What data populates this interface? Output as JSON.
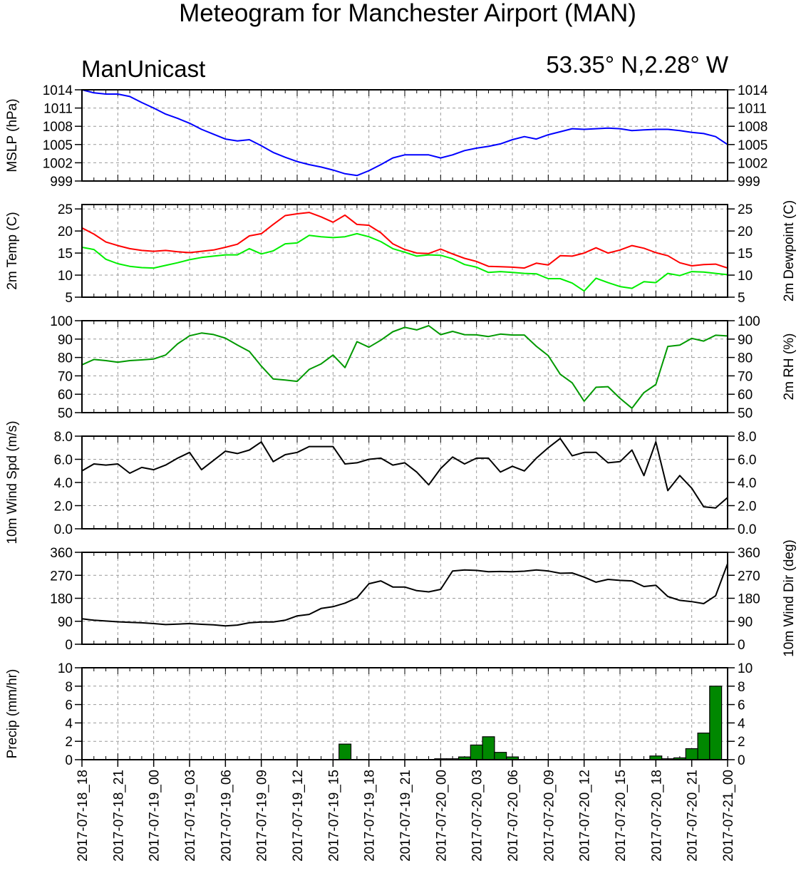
{
  "title": "Meteogram for Manchester Airport (MAN)",
  "subtitle_left": "ManUnicast",
  "subtitle_right": "53.35° N,2.28° W",
  "x_tick_labels": [
    "2017-07-18_18",
    "2017-07-18_21",
    "2017-07-19_00",
    "2017-07-19_03",
    "2017-07-19_06",
    "2017-07-19_09",
    "2017-07-19_12",
    "2017-07-19_15",
    "2017-07-19_18",
    "2017-07-19_21",
    "2017-07-20_00",
    "2017-07-20_03",
    "2017-07-20_06",
    "2017-07-20_09",
    "2017-07-20_12",
    "2017-07-20_15",
    "2017-07-20_18",
    "2017-07-20_21",
    "2017-07-21_00"
  ],
  "colors": {
    "mslp": "#0000ff",
    "temp": "#ff0000",
    "dewpoint": "#00ee00",
    "rh": "#009900",
    "wind": "#000000",
    "precip_fill": "#008800",
    "grid": "#999999"
  },
  "chart_data": [
    {
      "type": "line",
      "ylabel_left": "MSLP (hPa)",
      "ylim": [
        999,
        1014
      ],
      "yticks": [
        999,
        1002,
        1005,
        1008,
        1011,
        1014
      ],
      "ytick_labels": [
        "999",
        "1002",
        "1005",
        "1008",
        "1011",
        "1014"
      ],
      "right_ticks": true,
      "grid": true,
      "x_hours": [
        0,
        1,
        2,
        3,
        4,
        5,
        6,
        7,
        8,
        9,
        10,
        11,
        12,
        13,
        14,
        15,
        16,
        17,
        18,
        19,
        20,
        21,
        22,
        23,
        24,
        25,
        26,
        27,
        28,
        29,
        30,
        31,
        32,
        33,
        34,
        35,
        36,
        37,
        38,
        39,
        40,
        41,
        42,
        43,
        44,
        45,
        46,
        47,
        48,
        49,
        50,
        51,
        52,
        53,
        54
      ],
      "series": [
        {
          "color_key": "mslp",
          "values": [
            1014.0,
            1013.5,
            1013.3,
            1013.3,
            1012.9,
            1011.9,
            1011.0,
            1010.0,
            1009.3,
            1008.5,
            1007.5,
            1006.7,
            1005.9,
            1005.6,
            1005.8,
            1004.8,
            1003.7,
            1002.9,
            1002.2,
            1001.7,
            1001.3,
            1000.8,
            1000.2,
            999.9,
            1000.7,
            1001.7,
            1002.8,
            1003.3,
            1003.3,
            1003.3,
            1002.8,
            1003.3,
            1004.0,
            1004.4,
            1004.7,
            1005.1,
            1005.8,
            1006.3,
            1005.9,
            1006.6,
            1007.1,
            1007.6,
            1007.5,
            1007.6,
            1007.7,
            1007.6,
            1007.3,
            1007.4,
            1007.5,
            1007.5,
            1007.3,
            1007.0,
            1006.8,
            1006.3,
            1005.0
          ]
        }
      ]
    },
    {
      "type": "line",
      "ylabel_left": "2m Temp (C)",
      "ylabel_right": "2m Dewpoint (C)",
      "ylim": [
        5,
        26
      ],
      "yticks": [
        5,
        10,
        15,
        20,
        25
      ],
      "ytick_labels": [
        "5",
        "10",
        "15",
        "20",
        "25"
      ],
      "right_ticks": true,
      "grid": true,
      "x_hours": [
        0,
        1,
        2,
        3,
        4,
        5,
        6,
        7,
        8,
        9,
        10,
        11,
        12,
        13,
        14,
        15,
        16,
        17,
        18,
        19,
        20,
        21,
        22,
        23,
        24,
        25,
        26,
        27,
        28,
        29,
        30,
        31,
        32,
        33,
        34,
        35,
        36,
        37,
        38,
        39,
        40,
        41,
        42,
        43,
        44,
        45,
        46,
        47,
        48,
        49,
        50,
        51,
        52,
        53,
        54
      ],
      "series": [
        {
          "color_key": "temp",
          "values": [
            20.7,
            19.3,
            17.5,
            16.7,
            16.0,
            15.6,
            15.4,
            15.6,
            15.3,
            15.1,
            15.4,
            15.7,
            16.3,
            17.0,
            18.9,
            19.4,
            21.5,
            23.5,
            23.9,
            24.2,
            23.2,
            22.0,
            23.6,
            21.5,
            21.3,
            19.6,
            17.1,
            15.8,
            15.0,
            14.9,
            15.9,
            14.8,
            13.8,
            13.1,
            12.0,
            11.9,
            11.8,
            11.6,
            12.7,
            12.3,
            14.4,
            14.3,
            15.0,
            16.2,
            15.0,
            15.7,
            16.7,
            16.1,
            15.1,
            14.4,
            12.8,
            12.1,
            12.4,
            12.5,
            11.6
          ]
        },
        {
          "color_key": "dewpoint",
          "values": [
            16.3,
            15.8,
            13.6,
            12.6,
            12.0,
            11.7,
            11.6,
            12.2,
            12.8,
            13.5,
            14.0,
            14.3,
            14.6,
            14.6,
            16.0,
            14.8,
            15.5,
            17.1,
            17.3,
            19.0,
            18.7,
            18.5,
            18.7,
            19.4,
            18.7,
            17.6,
            16.0,
            15.2,
            14.3,
            14.6,
            14.5,
            13.7,
            12.4,
            11.8,
            10.6,
            10.8,
            10.6,
            10.4,
            10.3,
            9.2,
            9.2,
            8.2,
            6.4,
            9.3,
            8.3,
            7.4,
            7.0,
            8.5,
            8.3,
            10.4,
            9.9,
            10.8,
            10.7,
            10.4,
            10.1
          ]
        }
      ]
    },
    {
      "type": "line",
      "ylabel_left": "",
      "ylabel_right": "2m RH (%)",
      "ylim": [
        50,
        100
      ],
      "yticks": [
        50,
        60,
        70,
        80,
        90,
        100
      ],
      "ytick_labels": [
        "50",
        "60",
        "70",
        "80",
        "90",
        "100"
      ],
      "right_ticks": true,
      "grid": true,
      "x_hours": [
        0,
        1,
        2,
        3,
        4,
        5,
        6,
        7,
        8,
        9,
        10,
        11,
        12,
        13,
        14,
        15,
        16,
        17,
        18,
        19,
        20,
        21,
        22,
        23,
        24,
        25,
        26,
        27,
        28,
        29,
        30,
        31,
        32,
        33,
        34,
        35,
        36,
        37,
        38,
        39,
        40,
        41,
        42,
        43,
        44,
        45,
        46,
        47,
        48,
        49,
        50,
        51,
        52,
        53,
        54
      ],
      "series": [
        {
          "color_key": "rh",
          "values": [
            76.0,
            78.9,
            78.3,
            77.4,
            78.3,
            78.7,
            79.2,
            81.3,
            87.4,
            91.8,
            93.3,
            92.5,
            90.5,
            86.8,
            83.3,
            75.3,
            68.3,
            67.7,
            67.0,
            73.5,
            76.5,
            81.3,
            74.5,
            88.6,
            85.6,
            89.4,
            94.0,
            96.4,
            95.0,
            97.3,
            92.4,
            94.2,
            92.4,
            92.3,
            91.4,
            92.7,
            92.2,
            92.2,
            86.1,
            81.0,
            70.9,
            66.2,
            56.2,
            63.8,
            64.1,
            57.8,
            52.4,
            60.9,
            65.3,
            86.0,
            86.7,
            90.4,
            88.9,
            92.1,
            91.7
          ]
        }
      ]
    },
    {
      "type": "line",
      "ylabel_left": "10m Wind Spd (m/s)",
      "ylim": [
        0,
        8
      ],
      "yticks": [
        0,
        2,
        4,
        6,
        8
      ],
      "ytick_labels": [
        "0.0",
        "2.0",
        "4.0",
        "6.0",
        "8.0"
      ],
      "right_ticks": true,
      "grid": true,
      "x_hours": [
        0,
        1,
        2,
        3,
        4,
        5,
        6,
        7,
        8,
        9,
        10,
        11,
        12,
        13,
        14,
        15,
        16,
        17,
        18,
        19,
        20,
        21,
        22,
        23,
        24,
        25,
        26,
        27,
        28,
        29,
        30,
        31,
        32,
        33,
        34,
        35,
        36,
        37,
        38,
        39,
        40,
        41,
        42,
        43,
        44,
        45,
        46,
        47,
        48,
        49,
        50,
        51,
        52,
        53,
        54
      ],
      "series": [
        {
          "color_key": "wind",
          "values": [
            5.0,
            5.6,
            5.5,
            5.6,
            4.8,
            5.3,
            5.1,
            5.5,
            6.1,
            6.6,
            5.1,
            5.9,
            6.7,
            6.5,
            6.8,
            7.5,
            5.8,
            6.4,
            6.6,
            7.1,
            7.1,
            7.1,
            5.6,
            5.7,
            6.0,
            6.1,
            5.5,
            5.7,
            4.9,
            3.8,
            5.2,
            6.2,
            5.6,
            6.1,
            6.1,
            4.9,
            5.4,
            5.0,
            6.1,
            7.0,
            7.8,
            6.3,
            6.6,
            6.6,
            5.7,
            5.8,
            6.8,
            4.6,
            7.5,
            3.3,
            4.6,
            3.5,
            1.9,
            1.8,
            2.7
          ]
        }
      ]
    },
    {
      "type": "line",
      "ylabel_left": "",
      "ylabel_right": "10m Wind Dir (deg)",
      "ylim": [
        0,
        360
      ],
      "yticks": [
        0,
        90,
        180,
        270,
        360
      ],
      "ytick_labels": [
        "0",
        "90",
        "180",
        "270",
        "360"
      ],
      "right_ticks": true,
      "grid": true,
      "x_hours": [
        0,
        1,
        2,
        3,
        4,
        5,
        6,
        7,
        8,
        9,
        10,
        11,
        12,
        13,
        14,
        15,
        16,
        17,
        18,
        19,
        20,
        21,
        22,
        23,
        24,
        25,
        26,
        27,
        28,
        29,
        30,
        31,
        32,
        33,
        34,
        35,
        36,
        37,
        38,
        39,
        40,
        41,
        42,
        43,
        44,
        45,
        46,
        47,
        48,
        49,
        50,
        51,
        52,
        53,
        54
      ],
      "series": [
        {
          "color_key": "wind",
          "values": [
            100,
            94,
            91,
            88,
            86,
            84,
            81,
            77,
            79,
            81,
            78,
            76,
            72,
            75,
            84,
            87,
            87,
            94,
            111,
            117,
            140,
            147,
            161,
            182,
            237,
            248,
            224,
            224,
            210,
            205,
            215,
            287,
            291,
            289,
            284,
            285,
            284,
            286,
            291,
            287,
            278,
            279,
            263,
            243,
            254,
            250,
            248,
            226,
            231,
            187,
            172,
            167,
            159,
            190,
            316
          ]
        }
      ]
    },
    {
      "type": "bar",
      "ylabel_left": "Precip (mm/hr)",
      "ylim": [
        0,
        10
      ],
      "yticks": [
        0,
        2,
        4,
        6,
        8,
        10
      ],
      "ytick_labels": [
        "0",
        "2",
        "4",
        "6",
        "8",
        "10"
      ],
      "right_ticks": true,
      "grid": true,
      "x_hours": [
        0,
        1,
        2,
        3,
        4,
        5,
        6,
        7,
        8,
        9,
        10,
        11,
        12,
        13,
        14,
        15,
        16,
        17,
        18,
        19,
        20,
        21,
        22,
        23,
        24,
        25,
        26,
        27,
        28,
        29,
        30,
        31,
        32,
        33,
        34,
        35,
        36,
        37,
        38,
        39,
        40,
        41,
        42,
        43,
        44,
        45,
        46,
        47,
        48,
        49,
        50,
        51,
        52,
        53,
        54
      ],
      "series": [
        {
          "color_key": "precip_fill",
          "values": [
            0,
            0,
            0,
            0,
            0,
            0,
            0,
            0,
            0,
            0,
            0,
            0,
            0,
            0,
            0,
            0,
            0,
            0,
            0,
            0,
            0,
            0,
            1.7,
            0,
            0,
            0,
            0,
            0,
            0,
            0,
            0.1,
            0.1,
            0.3,
            1.6,
            2.5,
            0.8,
            0.3,
            0,
            0,
            0,
            0,
            0,
            0,
            0,
            0,
            0,
            0,
            0,
            0.4,
            0.1,
            0.2,
            1.2,
            2.9,
            8.0,
            0
          ]
        }
      ]
    }
  ]
}
